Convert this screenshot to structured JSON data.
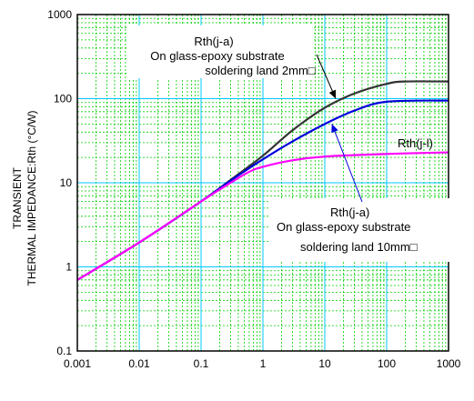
{
  "chart_data": {
    "type": "line",
    "title": "",
    "xlabel": "",
    "ylabel": [
      "TRANSIENT",
      "THERMAL IMPEDANCE:Rth (°C/W)"
    ],
    "x_scale": "log",
    "y_scale": "log",
    "xlim": [
      0.001,
      1000
    ],
    "ylim": [
      0.1,
      1000
    ],
    "x_ticks": [
      "0.001",
      "0.01",
      "0.1",
      "1",
      "10",
      "100",
      "1000"
    ],
    "y_ticks": [
      "0.1",
      "1",
      "10",
      "100",
      "1000"
    ],
    "grid": true,
    "colors": {
      "background": "#ffffff",
      "grid_major": "#00c8ff",
      "grid_minor": "#00d000",
      "land_2mm": "#333333",
      "land_10mm": "#0000dd",
      "rth_j_l": "#ff00ff"
    },
    "series": [
      {
        "key": "land_2mm",
        "x": [
          0.001,
          0.01,
          0.1,
          0.3,
          1,
          3,
          10,
          30,
          100,
          200,
          1000
        ],
        "y": [
          0.7,
          1.95,
          6.0,
          10.8,
          21,
          42,
          78,
          115,
          150,
          160,
          160
        ]
      },
      {
        "key": "land_10mm",
        "x": [
          0.001,
          0.01,
          0.1,
          0.3,
          1,
          3,
          10,
          30,
          100,
          1000
        ],
        "y": [
          0.7,
          1.95,
          6.0,
          10.6,
          19,
          31,
          50,
          72,
          92,
          95
        ]
      },
      {
        "key": "rth_j_l",
        "x": [
          0.001,
          0.01,
          0.1,
          0.3,
          0.6,
          1,
          3,
          10,
          100,
          1000
        ],
        "y": [
          0.7,
          1.95,
          6.0,
          10.0,
          13.5,
          15.5,
          18.5,
          20.5,
          22,
          23
        ]
      }
    ],
    "annotations": [
      {
        "key": "land_2mm",
        "lines": [
          "Rth(j-a)",
          "On glass-epoxy substrate",
          "soldering land 2mm□"
        ],
        "arrow_x": 15,
        "arrow_y": 100
      },
      {
        "key": "rth_j_l",
        "lines": [
          "Rth(j-l)"
        ]
      },
      {
        "key": "land_10mm",
        "lines": [
          "Rth(j-a)",
          "On glass-epoxy substrate",
          "soldering land 10mm□"
        ],
        "arrow_x": 13,
        "arrow_y": 50
      }
    ]
  }
}
